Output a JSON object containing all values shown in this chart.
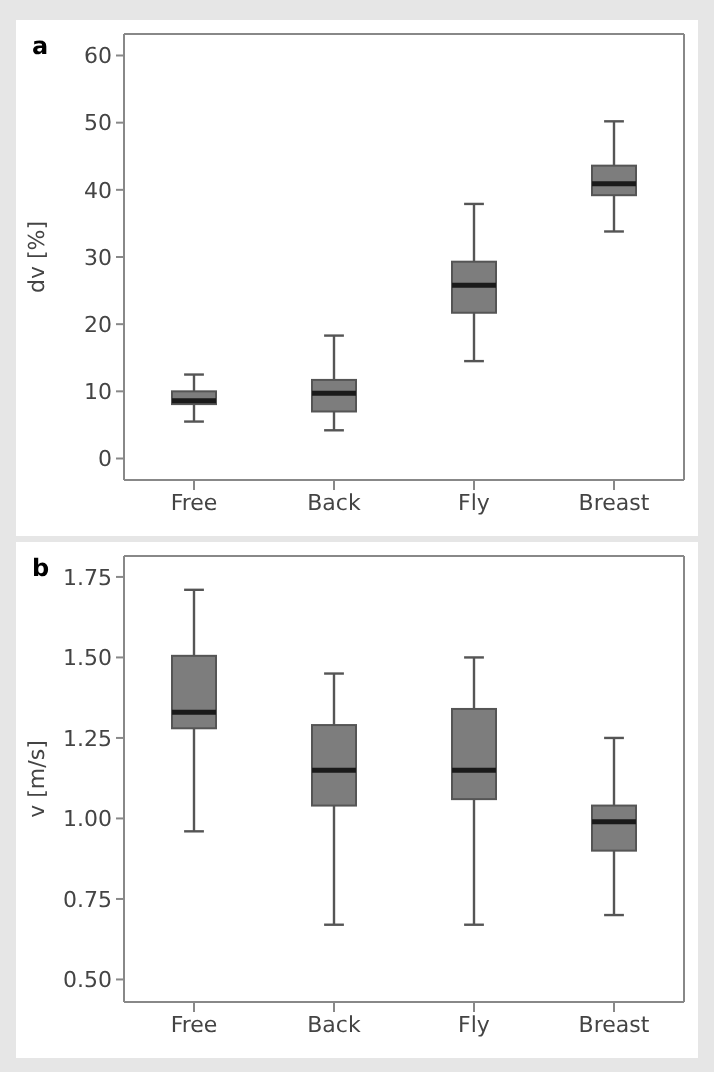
{
  "chart_data": [
    {
      "type": "box",
      "title": "a",
      "ylabel": "dv [%]",
      "categories": [
        "Free",
        "Back",
        "Fly",
        "Breast"
      ],
      "ylim": [
        -3.2,
        63.2
      ],
      "yticks": [
        0,
        10,
        20,
        30,
        40,
        50,
        60
      ],
      "grid": false,
      "legend": false,
      "series": [
        {
          "color": "#7d7d7d",
          "boxes": [
            {
              "low": 5.5,
              "q1": 8.1,
              "median": 8.6,
              "q3": 10,
              "high": 12.5
            },
            {
              "low": 4.2,
              "q1": 7,
              "median": 9.7,
              "q3": 11.7,
              "high": 18.3
            },
            {
              "low": 14.5,
              "q1": 21.7,
              "median": 25.8,
              "q3": 29.3,
              "high": 37.9
            },
            {
              "low": 33.8,
              "q1": 39.2,
              "median": 40.9,
              "q3": 43.6,
              "high": 50.2
            }
          ]
        }
      ]
    },
    {
      "type": "box",
      "title": "b",
      "ylabel": "v [m/s]",
      "categories": [
        "Free",
        "Back",
        "Fly",
        "Breast"
      ],
      "ylim": [
        0.43,
        1.815
      ],
      "yticks": [
        {
          "value": 0.5,
          "label": "0.50"
        },
        {
          "value": 0.75,
          "label": "0.75"
        },
        {
          "value": 1,
          "label": "1.00"
        },
        {
          "value": 1.25,
          "label": "1.25"
        },
        {
          "value": 1.5,
          "label": "1.50"
        },
        {
          "value": 1.75,
          "label": "1.75"
        }
      ],
      "grid": false,
      "legend": false,
      "series": [
        {
          "color": "#7d7d7d",
          "boxes": [
            {
              "low": 0.96,
              "q1": 1.28,
              "median": 1.33,
              "q3": 1.505,
              "high": 1.71
            },
            {
              "low": 0.67,
              "q1": 1.04,
              "median": 1.15,
              "q3": 1.29,
              "high": 1.45
            },
            {
              "low": 0.67,
              "q1": 1.06,
              "median": 1.15,
              "q3": 1.34,
              "high": 1.5
            },
            {
              "low": 0.7,
              "q1": 0.9,
              "median": 0.99,
              "q3": 1.04,
              "high": 1.25
            }
          ]
        }
      ]
    }
  ]
}
